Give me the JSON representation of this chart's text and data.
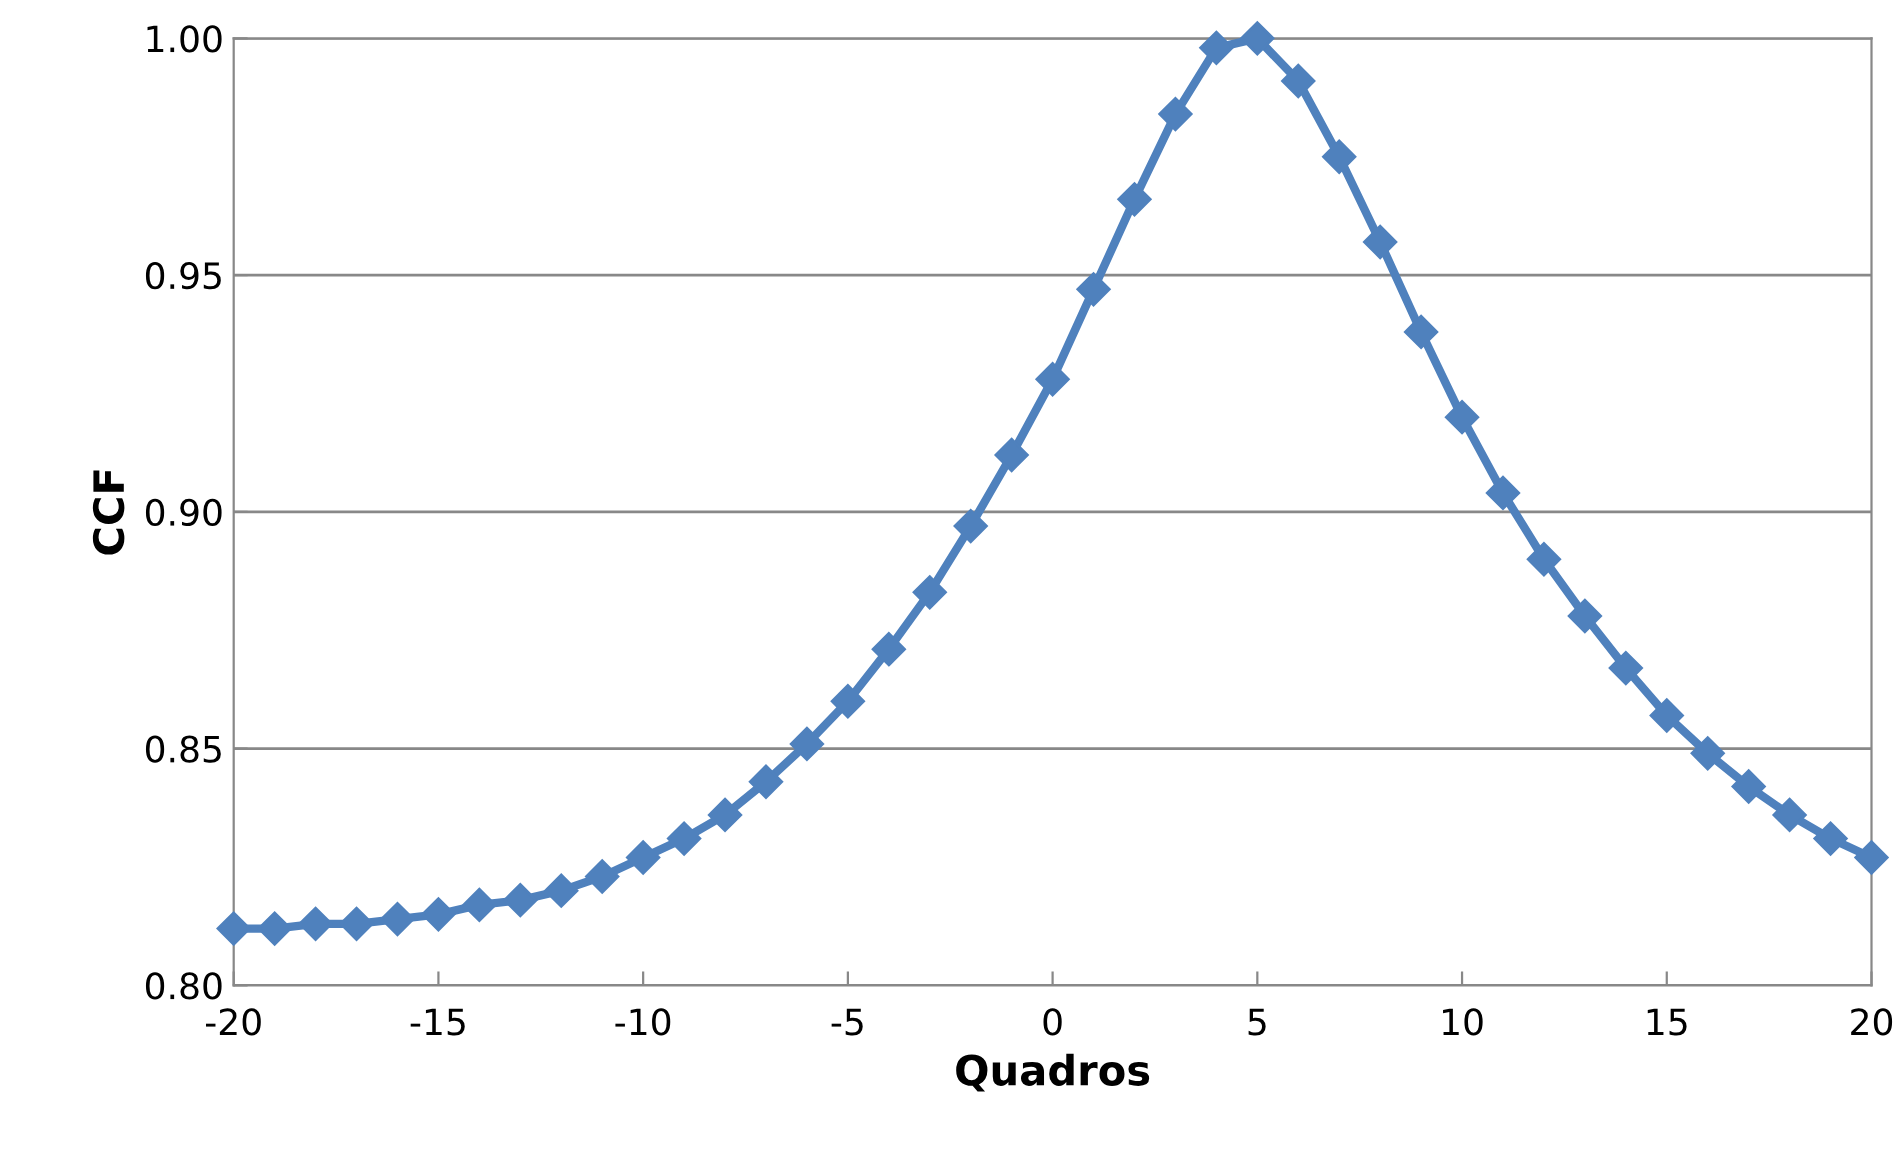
{
  "chart_data": {
    "type": "line",
    "xlabel": "Quadros",
    "ylabel": "CCF",
    "x": [
      -20,
      -19,
      -18,
      -17,
      -16,
      -15,
      -14,
      -13,
      -12,
      -11,
      -10,
      -9,
      -8,
      -7,
      -6,
      -5,
      -4,
      -3,
      -2,
      -1,
      0,
      1,
      2,
      3,
      4,
      5,
      6,
      7,
      8,
      9,
      10,
      11,
      12,
      13,
      14,
      15,
      16,
      17,
      18,
      19,
      20
    ],
    "series": [
      {
        "color": "#4f81bd",
        "values": [
          0.812,
          0.812,
          0.813,
          0.813,
          0.814,
          0.815,
          0.817,
          0.818,
          0.82,
          0.823,
          0.827,
          0.831,
          0.836,
          0.843,
          0.851,
          0.86,
          0.871,
          0.883,
          0.897,
          0.912,
          0.928,
          0.947,
          0.966,
          0.984,
          0.998,
          1.0,
          0.991,
          0.975,
          0.957,
          0.938,
          0.92,
          0.904,
          0.89,
          0.878,
          0.867,
          0.857,
          0.849,
          0.842,
          0.836,
          0.831,
          0.827
        ]
      }
    ],
    "xlim": [
      -20,
      20
    ],
    "xticks": [
      -20,
      -15,
      -10,
      -5,
      0,
      5,
      10,
      15,
      20
    ],
    "ylim": [
      0.8,
      1.0
    ],
    "yticks": [
      {
        "value": 0.8,
        "label": "0.80"
      },
      {
        "value": 0.85,
        "label": "0.85"
      },
      {
        "value": 0.9,
        "label": "0.90"
      },
      {
        "value": 0.95,
        "label": "0.95"
      },
      {
        "value": 1.0,
        "label": "1.00"
      }
    ],
    "grid": "y",
    "marker": "diamond",
    "line_style": "solid",
    "legend": false
  }
}
